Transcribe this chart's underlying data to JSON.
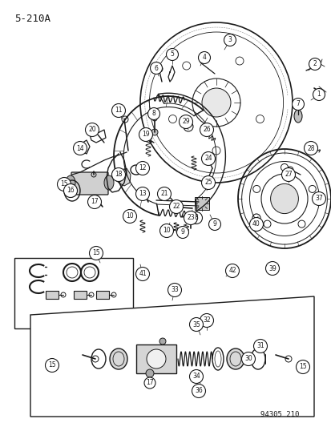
{
  "title": "5-210A",
  "catalog_number": "94305 210",
  "bg_color": "#ffffff",
  "line_color": "#1a1a1a",
  "fig_width": 4.14,
  "fig_height": 5.33,
  "dpi": 100
}
